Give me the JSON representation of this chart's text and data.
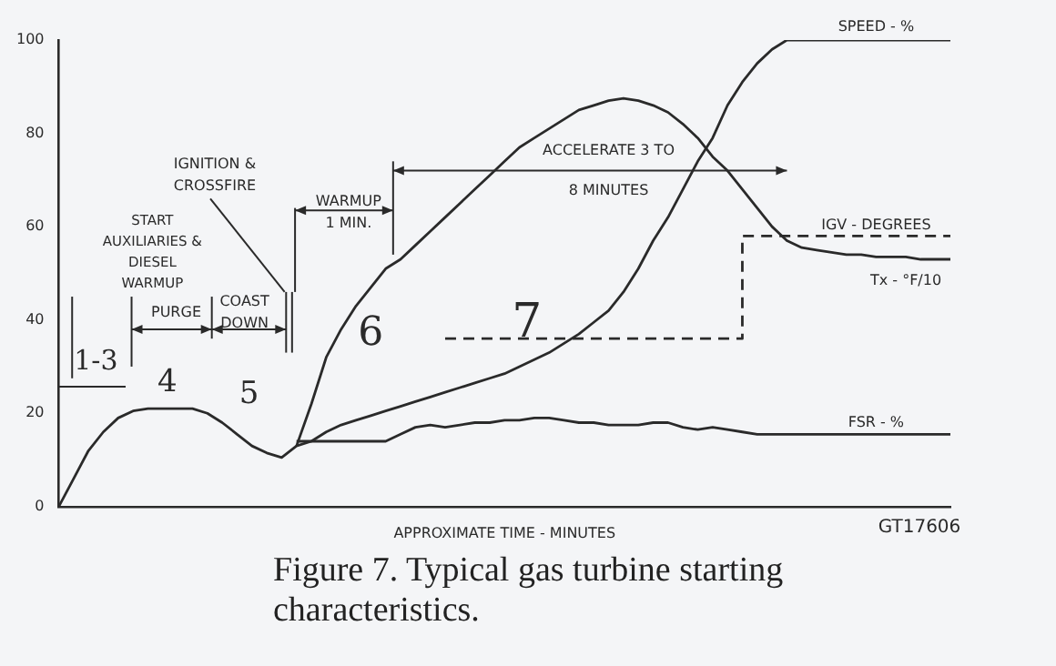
{
  "chart_data": {
    "type": "line",
    "title": "Figure 7.   Typical gas turbine starting characteristics.",
    "xlabel": "APPROXIMATE TIME - MINUTES",
    "categories": [
      null,
      null,
      null,
      null,
      null,
      null,
      null,
      null,
      null,
      null,
      null,
      null,
      null,
      null,
      null,
      null,
      null,
      null,
      null,
      null,
      null,
      null,
      null,
      null,
      null,
      null,
      null,
      null,
      null,
      null,
      null,
      null,
      null,
      null,
      null,
      null,
      null,
      null,
      null,
      null,
      null,
      null,
      null,
      null,
      null,
      null,
      null,
      null,
      null,
      null,
      null,
      null,
      null,
      null,
      null,
      null,
      null,
      null,
      null,
      null,
      null
    ],
    "series": [
      {
        "name": "SPEED - %",
        "color": "#2a2a2a",
        "values": [
          0,
          6,
          12,
          16,
          19,
          20.5,
          21,
          21,
          21,
          21,
          20,
          18,
          15.5,
          13,
          11.5,
          10.5,
          13,
          14,
          16,
          17.5,
          18.5,
          19.5,
          20.5,
          21.5,
          22.5,
          23.5,
          24.5,
          25.5,
          26.5,
          27.5,
          28.5,
          30,
          31.5,
          33,
          35,
          37,
          39.5,
          42,
          46,
          51,
          57,
          62,
          68,
          74,
          79,
          86,
          91,
          95,
          98,
          100,
          100,
          100,
          100,
          100,
          100,
          100,
          100,
          100,
          100,
          100,
          100
        ]
      },
      {
        "name": "Tx - °F/10",
        "color": "#2a2a2a",
        "values": [
          null,
          null,
          null,
          null,
          null,
          null,
          null,
          null,
          null,
          null,
          null,
          null,
          null,
          null,
          null,
          null,
          13,
          22,
          32,
          38,
          43,
          47,
          51,
          53,
          56,
          59,
          62,
          65,
          68,
          71,
          74,
          77,
          79,
          81,
          83,
          85,
          86,
          87,
          87.5,
          87,
          86,
          84.5,
          82,
          79,
          75,
          72,
          68,
          64,
          60,
          57,
          55.5,
          55,
          54.5,
          54,
          54,
          53.5,
          53.5,
          53.5,
          53,
          53,
          53
        ]
      },
      {
        "name": "FSR - %",
        "color": "#2a2a2a",
        "values": [
          null,
          null,
          null,
          null,
          null,
          null,
          null,
          null,
          null,
          null,
          null,
          null,
          null,
          null,
          null,
          null,
          14,
          14,
          14,
          14,
          14,
          14,
          14,
          15.5,
          17,
          17.5,
          17,
          17.5,
          18,
          18,
          18.5,
          18.5,
          19,
          19,
          18.5,
          18,
          18,
          17.5,
          17.5,
          17.5,
          18,
          18,
          17,
          16.5,
          17,
          16.5,
          16,
          15.5,
          15.5,
          15.5,
          15.5,
          15.5,
          15.5,
          15.5,
          15.5,
          15.5,
          15.5,
          15.5,
          15.5,
          15.5,
          15.5
        ]
      },
      {
        "name": "IGV - DEGREES",
        "color": "#2a2a2a",
        "type": "step",
        "line_style": "dashed",
        "values": [
          null,
          null,
          null,
          null,
          null,
          null,
          null,
          null,
          null,
          null,
          null,
          null,
          null,
          null,
          null,
          null,
          null,
          null,
          null,
          null,
          null,
          null,
          null,
          null,
          null,
          null,
          36,
          36,
          36,
          36,
          36,
          36,
          36,
          36,
          36,
          36,
          36,
          36,
          36,
          36,
          36,
          36,
          36,
          36,
          36,
          36,
          36,
          58,
          58,
          58,
          58,
          58,
          58,
          58,
          58,
          58,
          58,
          58,
          58,
          58,
          58
        ]
      }
    ],
    "ylim": [
      0,
      100
    ],
    "yticks": [
      0,
      20,
      40,
      60,
      80,
      100
    ],
    "grid": false,
    "legend": false,
    "marker": "none",
    "line_style": "solid",
    "tick_labels": "y",
    "annotations": [
      "START AUXILIARIES & DIESEL WARMUP",
      "IGNITION & CROSSFIRE",
      "PURGE",
      "COAST DOWN",
      "WARMUP 1 MIN.",
      "ACCELERATE 3 TO 8 MINUTES",
      "1-3",
      "4",
      "5",
      "6",
      "7",
      "GT17606"
    ]
  }
}
